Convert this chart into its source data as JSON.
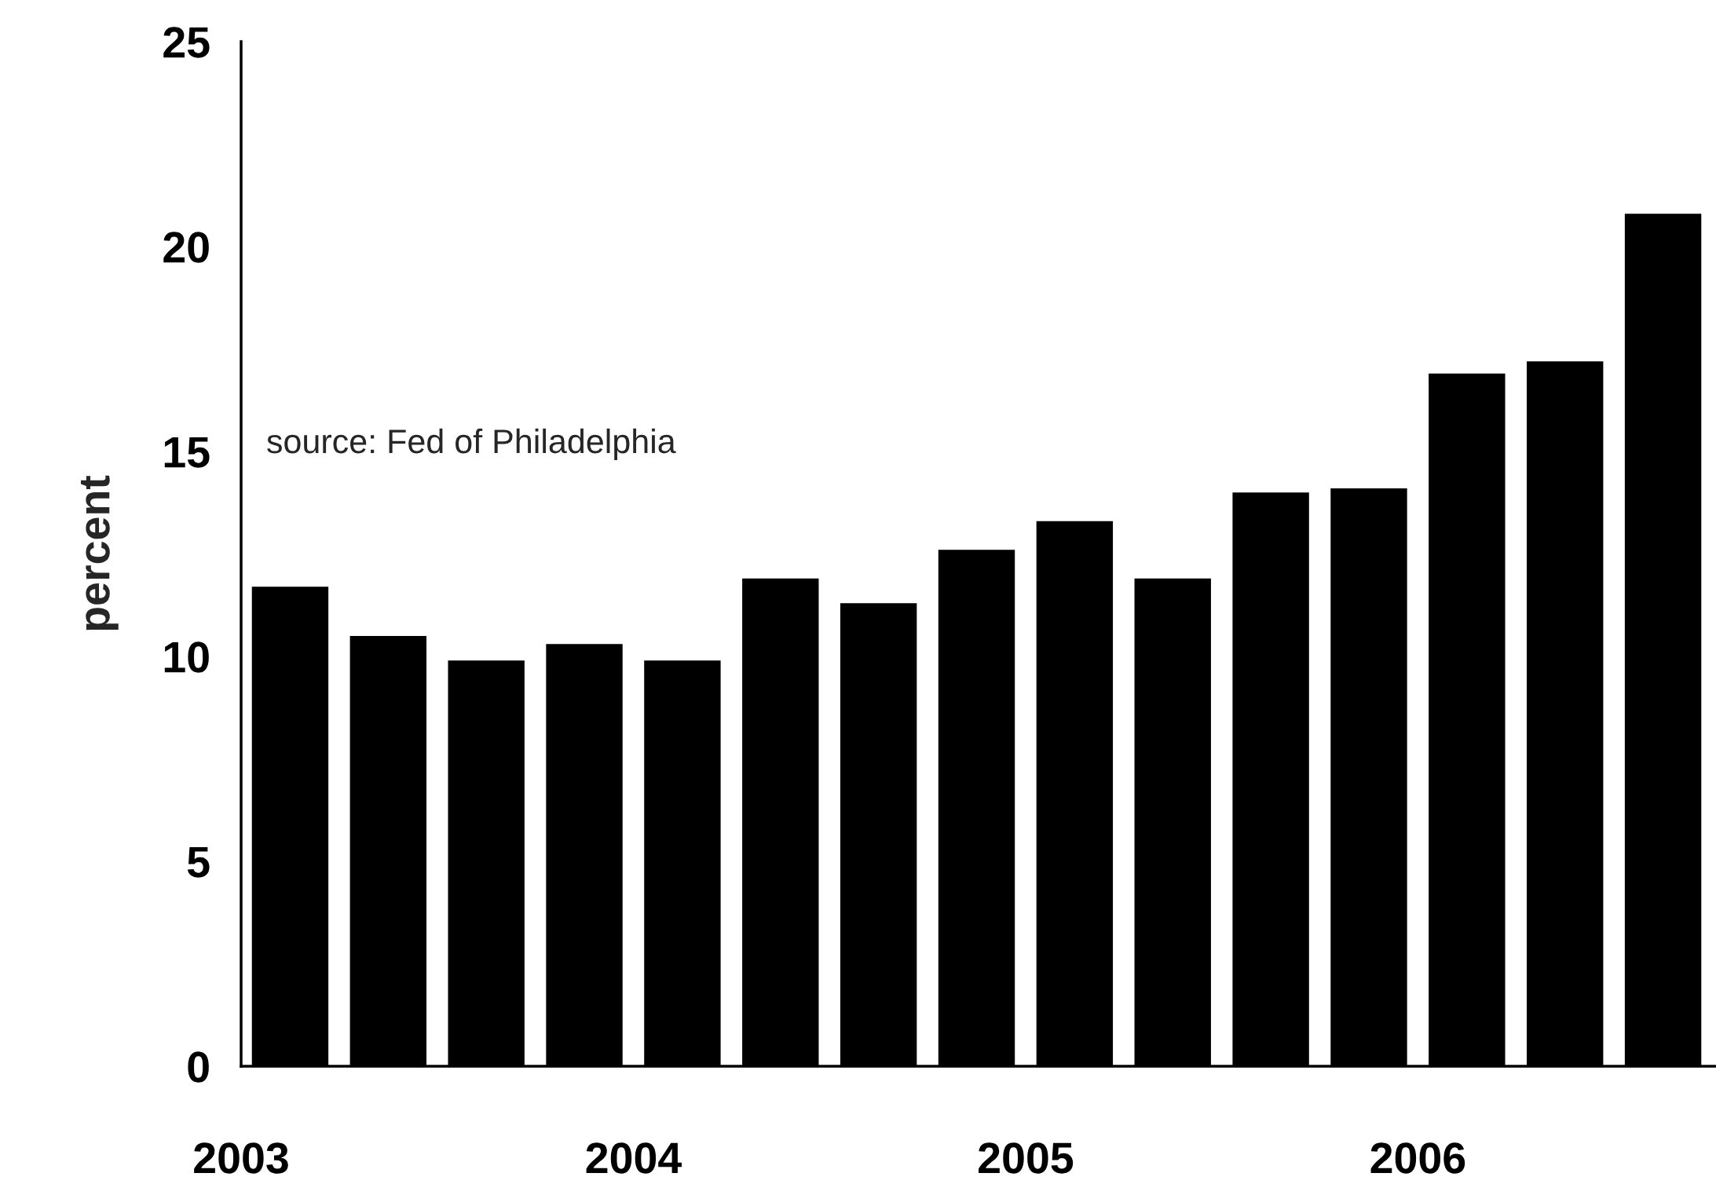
{
  "chart_data": {
    "type": "bar",
    "ylabel": "percent",
    "x": [
      2003.125,
      2003.375,
      2003.625,
      2003.875,
      2004.125,
      2004.375,
      2004.625,
      2004.875,
      2005.125,
      2005.375,
      2005.625,
      2005.875,
      2006.125,
      2006.375,
      2006.625
    ],
    "values": [
      11.7,
      10.5,
      9.9,
      10.3,
      9.9,
      11.9,
      11.3,
      12.6,
      13.3,
      11.9,
      14.0,
      14.1,
      16.9,
      17.2,
      20.8
    ],
    "color": "#000000",
    "xlim": [
      2003,
      2006.76
    ],
    "xticks": [
      2003,
      2004,
      2005,
      2006
    ],
    "ylim": [
      0,
      25
    ],
    "yticks": [
      0,
      5,
      10,
      15,
      20,
      25
    ],
    "grid": false,
    "annotations": [
      "source: Fed of Philadelphia"
    ]
  }
}
